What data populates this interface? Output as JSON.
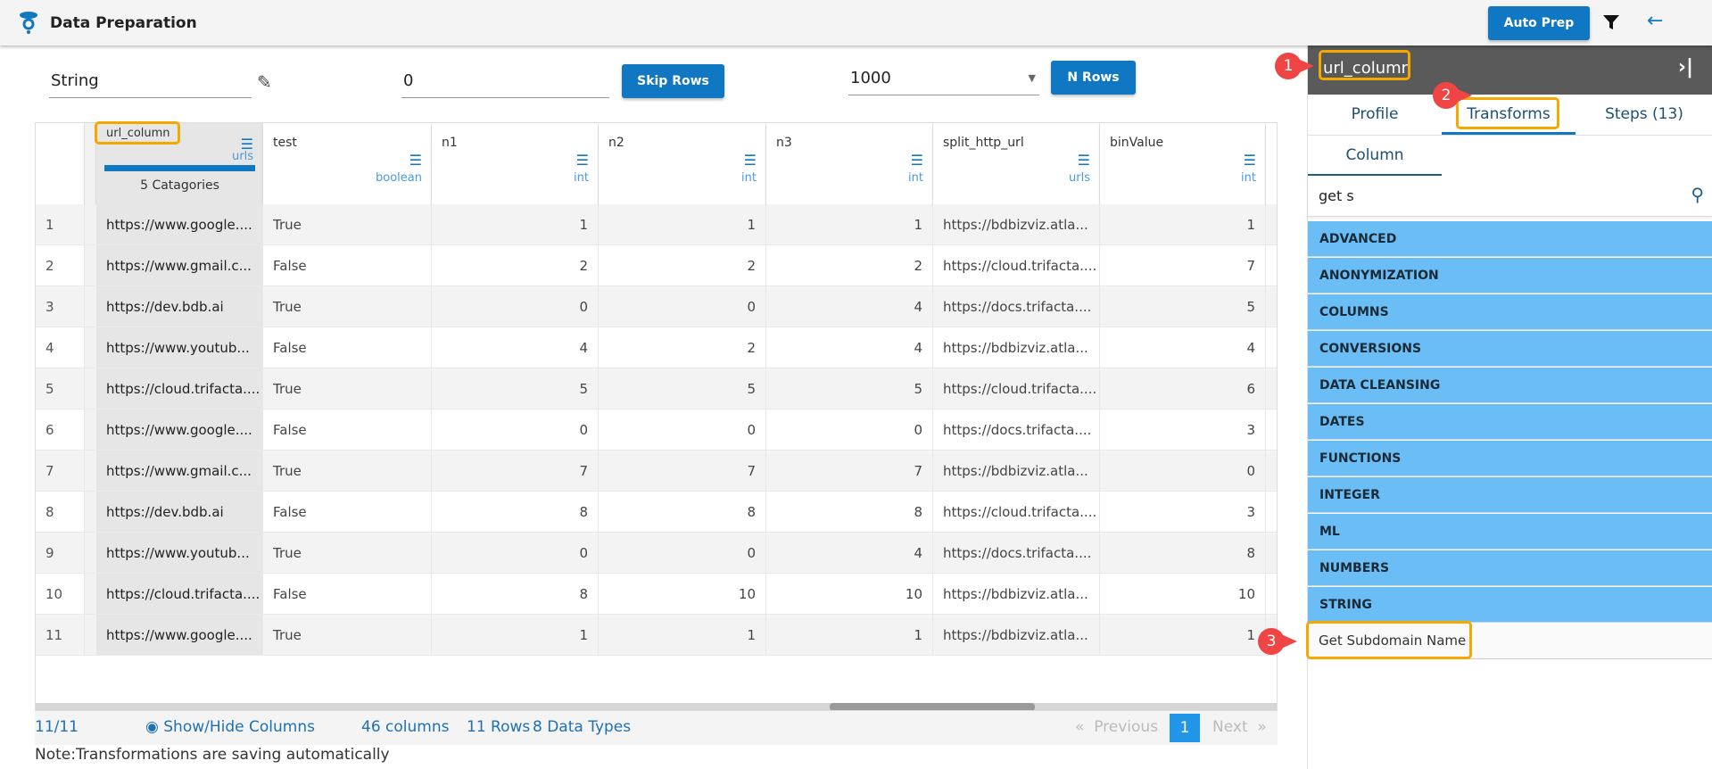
{
  "app": {
    "title": "Data Preparation",
    "auto_prep": "Auto Prep",
    "icons": [
      "logo-icon",
      "filter-icon",
      "back-arrow-icon"
    ]
  },
  "toolbar": {
    "type_value": "String",
    "skip_value": "0",
    "skip_button": "Skip Rows",
    "nrows_value": "1000",
    "nrows_button": "N Rows"
  },
  "columns": [
    {
      "name": "url_column",
      "type": "urls",
      "summary": "5 Catagories",
      "progress": 100
    },
    {
      "name": "test",
      "type": "boolean"
    },
    {
      "name": "n1",
      "type": "int"
    },
    {
      "name": "n2",
      "type": "int"
    },
    {
      "name": "n3",
      "type": "int"
    },
    {
      "name": "split_http_url",
      "type": "urls"
    },
    {
      "name": "binValue",
      "type": "int"
    }
  ],
  "rows": [
    [
      "1",
      "https://www.google....",
      "True",
      "1",
      "1",
      "1",
      "https://bdbizviz.atla...",
      "1"
    ],
    [
      "2",
      "https://www.gmail.c...",
      "False",
      "2",
      "2",
      "2",
      "https://cloud.trifacta....",
      "7"
    ],
    [
      "3",
      "https://dev.bdb.ai",
      "True",
      "0",
      "0",
      "4",
      "https://docs.trifacta....",
      "5"
    ],
    [
      "4",
      "https://www.youtub...",
      "False",
      "4",
      "2",
      "4",
      "https://bdbizviz.atla...",
      "4"
    ],
    [
      "5",
      "https://cloud.trifacta....",
      "True",
      "5",
      "5",
      "5",
      "https://cloud.trifacta....",
      "6"
    ],
    [
      "6",
      "https://www.google....",
      "False",
      "0",
      "0",
      "0",
      "https://docs.trifacta....",
      "3"
    ],
    [
      "7",
      "https://www.gmail.c...",
      "True",
      "7",
      "7",
      "7",
      "https://bdbizviz.atla...",
      "0"
    ],
    [
      "8",
      "https://dev.bdb.ai",
      "False",
      "8",
      "8",
      "8",
      "https://cloud.trifacta....",
      "3"
    ],
    [
      "9",
      "https://www.youtub...",
      "True",
      "0",
      "0",
      "4",
      "https://docs.trifacta....",
      "8"
    ],
    [
      "10",
      "https://cloud.trifacta....",
      "False",
      "8",
      "10",
      "10",
      "https://bdbizviz.atla...",
      "10"
    ],
    [
      "11",
      "https://www.google....",
      "True",
      "1",
      "1",
      "1",
      "https://bdbizviz.atla...",
      "1"
    ]
  ],
  "footer": {
    "count": "11/11",
    "show_hide": "Show/Hide Columns",
    "columns": "46 columns",
    "rows": "11 Rows",
    "types": "8 Data Types",
    "previous": "Previous",
    "page": "1",
    "next": "Next"
  },
  "note": "Note:Transformations are saving automatically",
  "panel": {
    "column_name": "url_column",
    "tabs": [
      "Profile",
      "Transforms",
      "Steps (13)"
    ],
    "active_tab": "Transforms",
    "subtab": "Column",
    "search_value": "get s",
    "categories": [
      "ADVANCED",
      "ANONYMIZATION",
      "COLUMNS",
      "CONVERSIONS",
      "DATA CLEANSING",
      "DATES",
      "FUNCTIONS",
      "INTEGER",
      "ML",
      "NUMBERS",
      "STRING"
    ],
    "result": "Get Subdomain Name"
  },
  "annotations": [
    "1",
    "2",
    "3"
  ],
  "colors": {
    "primary": "#1077c2",
    "category": "#6bbdf5",
    "highlight": "#f5a800",
    "badge": "#f04545",
    "panel_header": "#5a5a5a"
  }
}
